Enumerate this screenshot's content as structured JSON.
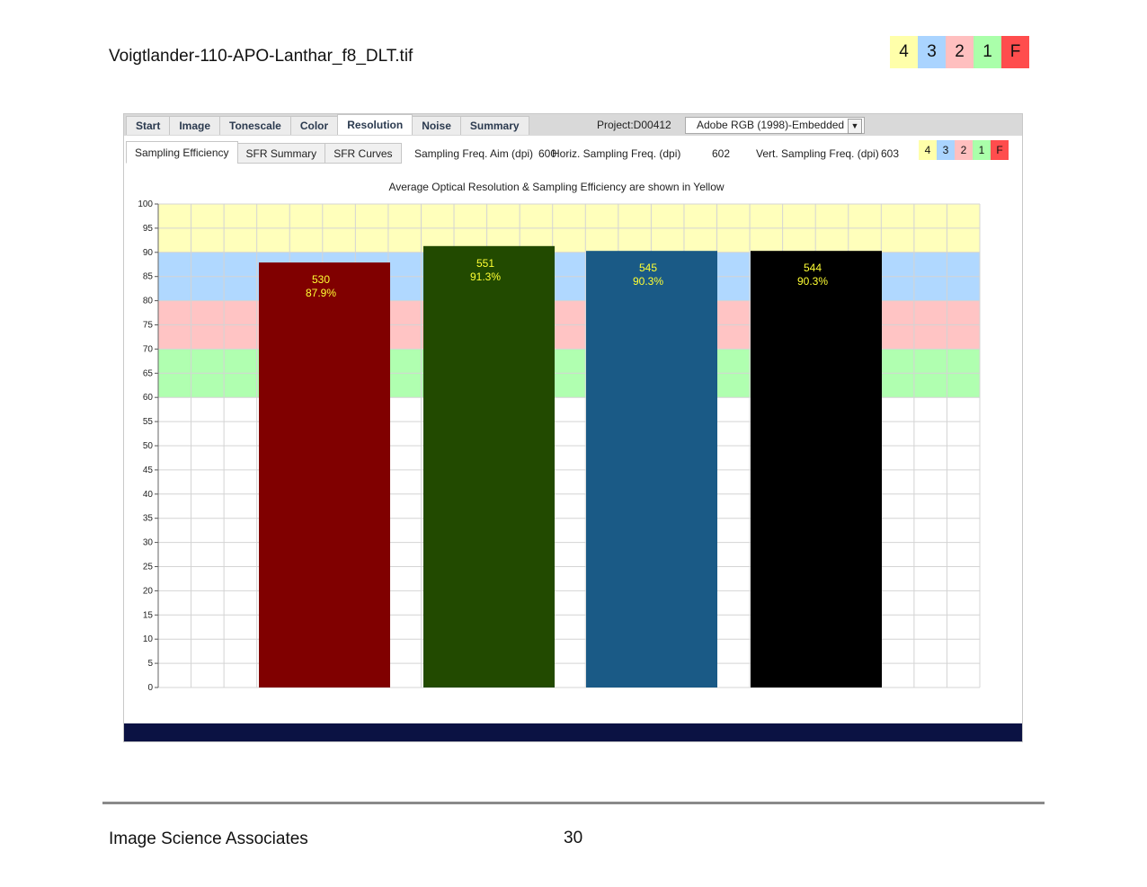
{
  "document": {
    "title": "Voigtlander-110-APO-Lanthar_f8_DLT.tif",
    "footer_left": "Image Science Associates",
    "page_number": "30"
  },
  "grade_legend": [
    {
      "label": "4",
      "color": "#ffffaa"
    },
    {
      "label": "3",
      "color": "#aad4ff"
    },
    {
      "label": "2",
      "color": "#ffbfbf"
    },
    {
      "label": "1",
      "color": "#aaffaa"
    },
    {
      "label": "F",
      "color": "#ff4d4d"
    }
  ],
  "tabs": [
    "Start",
    "Image",
    "Tonescale",
    "Color",
    "Resolution",
    "Noise",
    "Summary"
  ],
  "active_tab": "Resolution",
  "project": "Project:D00412",
  "color_space": "Adobe RGB (1998)-Embedded",
  "sub_tabs": [
    "Sampling Efficiency",
    "SFR Summary",
    "SFR Curves"
  ],
  "active_sub_tab": "Sampling Efficiency",
  "freq": {
    "aim_label": "Sampling Freq. Aim (dpi)",
    "aim_value": "600",
    "horiz_label": "Horiz. Sampling Freq. (dpi)",
    "horiz_value": "602",
    "vert_label": "Vert. Sampling Freq. (dpi)",
    "vert_value": "603"
  },
  "chart_data": {
    "type": "bar",
    "title": "Average Optical Resolution & Sampling Efficiency are shown in Yellow",
    "ylim": [
      0,
      100
    ],
    "yticks": [
      0,
      5,
      10,
      15,
      20,
      25,
      30,
      35,
      40,
      45,
      50,
      55,
      60,
      65,
      70,
      75,
      80,
      85,
      90,
      95,
      100
    ],
    "grid": true,
    "bands": [
      {
        "from": 90,
        "to": 100,
        "color": "#ffffbb"
      },
      {
        "from": 80,
        "to": 90,
        "color": "#b0d8ff"
      },
      {
        "from": 70,
        "to": 80,
        "color": "#ffc4c4"
      },
      {
        "from": 60,
        "to": 70,
        "color": "#b0ffb0"
      }
    ],
    "bars": [
      {
        "value": 87.9,
        "resolution": "530",
        "efficiency": "87.9%",
        "color": "#800000"
      },
      {
        "value": 91.3,
        "resolution": "551",
        "efficiency": "91.3%",
        "color": "#224a00"
      },
      {
        "value": 90.3,
        "resolution": "545",
        "efficiency": "90.3%",
        "color": "#1a5a86"
      },
      {
        "value": 90.3,
        "resolution": "544",
        "efficiency": "90.3%",
        "color": "#000000"
      }
    ]
  }
}
